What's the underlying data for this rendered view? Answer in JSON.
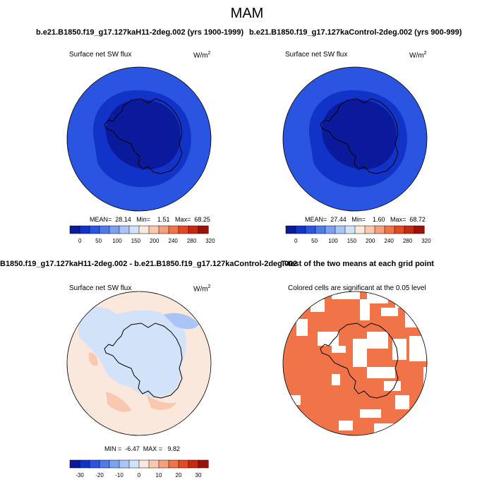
{
  "title": "MAM",
  "panels": {
    "top_left": {
      "header": "b.e21.B1850.f19_g17.127kaH11-2deg.002 (yrs 1900-1999)",
      "variable": "Surface net SW flux",
      "units": "W/m",
      "units_sup": "2",
      "stats": "MEAN=  28.14   Min=    1.51   Max=  68.25"
    },
    "top_right": {
      "header": "b.e21.B1850.f19_g17.127kaControl-2deg.002 (yrs 900-999)",
      "variable": "Surface net SW flux",
      "units": "W/m",
      "units_sup": "2",
      "stats": "MEAN=  27.44   Min=    1.60   Max=  68.72"
    },
    "bottom_left": {
      "header": "B1850.f19_g17.127kaH11-2deg.002 - b.e21.B1850.f19_g17.127kaControl-2deg.002",
      "variable": "Surface net SW flux",
      "units": "W/m",
      "units_sup": "2",
      "stats": "MIN =  -6.47  MAX =   9.82"
    },
    "bottom_right": {
      "header": "T-test of the two means at each grid point",
      "subtitle": "Colored cells are significant at the 0.05 level"
    }
  },
  "colorbars": {
    "absolute": {
      "labels": [
        "0",
        "50",
        "100",
        "150",
        "200",
        "240",
        "280",
        "320"
      ],
      "colors": [
        "#0a1a9a",
        "#1233c8",
        "#2a55e0",
        "#4f7ae8",
        "#7ea0f0",
        "#a9c4f5",
        "#d2e2f8",
        "#fbe8dc",
        "#f8c9ae",
        "#f5a07a",
        "#f07448",
        "#e44a22",
        "#c62a14",
        "#9a1208"
      ]
    },
    "difference": {
      "labels": [
        "-30",
        "-20",
        "-10",
        "0",
        "10",
        "20",
        "30"
      ],
      "colors": [
        "#0a1a9a",
        "#1233c8",
        "#2a55e0",
        "#4f7ae8",
        "#7ea0f0",
        "#a9c4f5",
        "#d2e2f8",
        "#fbe8dc",
        "#f8c9ae",
        "#f5a07a",
        "#f07448",
        "#e44a22",
        "#c62a14",
        "#9a1208"
      ]
    }
  },
  "colors": {
    "abs_outer": "#2a55e0",
    "abs_mid": "#1233c8",
    "abs_inner": "#0a1a9a",
    "diff_neutral": "#fbe8dc",
    "diff_light_blue": "#d2e2f8",
    "diff_blue": "#a9c4f5",
    "diff_orange": "#f8c9ae",
    "ttest_fill": "#f07448"
  }
}
